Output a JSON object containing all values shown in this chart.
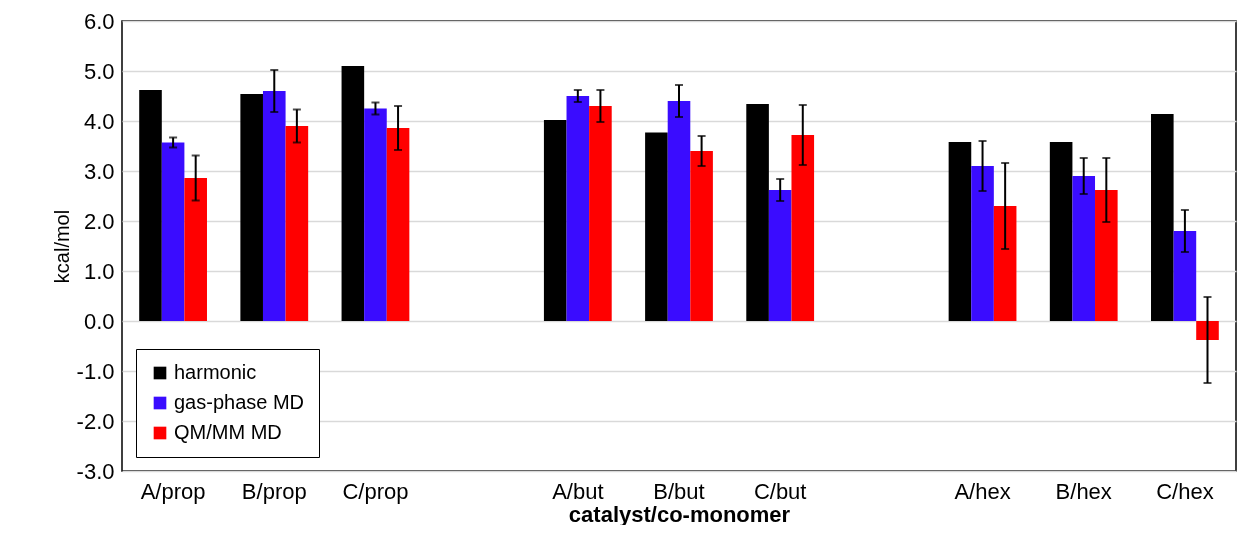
{
  "chart_data": {
    "type": "bar",
    "xlabel": "catalyst/co-monomer",
    "ylabel": "kcal/mol",
    "categories": [
      "A/prop",
      "B/prop",
      "C/prop",
      null,
      "A/but",
      "B/but",
      "C/but",
      null,
      "A/hex",
      "B/hex",
      "C/hex"
    ],
    "series": [
      {
        "name": "harmonic",
        "color": "#000000",
        "values": [
          4.62,
          4.54,
          5.1,
          null,
          4.02,
          3.77,
          4.34,
          null,
          3.58,
          3.58,
          4.14
        ]
      },
      {
        "name": "gas-phase MD",
        "color": "#3a0cff",
        "values": [
          3.57,
          4.6,
          4.25,
          null,
          4.5,
          4.4,
          2.62,
          null,
          3.1,
          2.9,
          1.8
        ],
        "errors": [
          0.1,
          0.42,
          0.12,
          null,
          0.12,
          0.32,
          0.22,
          null,
          0.5,
          0.36,
          0.42
        ]
      },
      {
        "name": "QM/MM MD",
        "color": "#ff0000",
        "values": [
          2.86,
          3.9,
          3.86,
          null,
          4.3,
          3.4,
          3.72,
          null,
          2.3,
          2.62,
          -0.38
        ],
        "errors": [
          0.45,
          0.33,
          0.44,
          null,
          0.32,
          0.3,
          0.6,
          null,
          0.86,
          0.64,
          0.86
        ]
      }
    ],
    "ylim": [
      -3,
      6
    ],
    "yticks": [
      {
        "value": -3,
        "label": "-3.0"
      },
      {
        "value": -2,
        "label": "-2.0"
      },
      {
        "value": -1,
        "label": "-1.0"
      },
      {
        "value": 0,
        "label": "0.0"
      },
      {
        "value": 1,
        "label": "1.0"
      },
      {
        "value": 2,
        "label": "2.0"
      },
      {
        "value": 3,
        "label": "3.0"
      },
      {
        "value": 4,
        "label": "4.0"
      },
      {
        "value": 5,
        "label": "5.0"
      },
      {
        "value": 6,
        "label": "6.0"
      }
    ],
    "grid": "y",
    "legend": "bottom left"
  }
}
